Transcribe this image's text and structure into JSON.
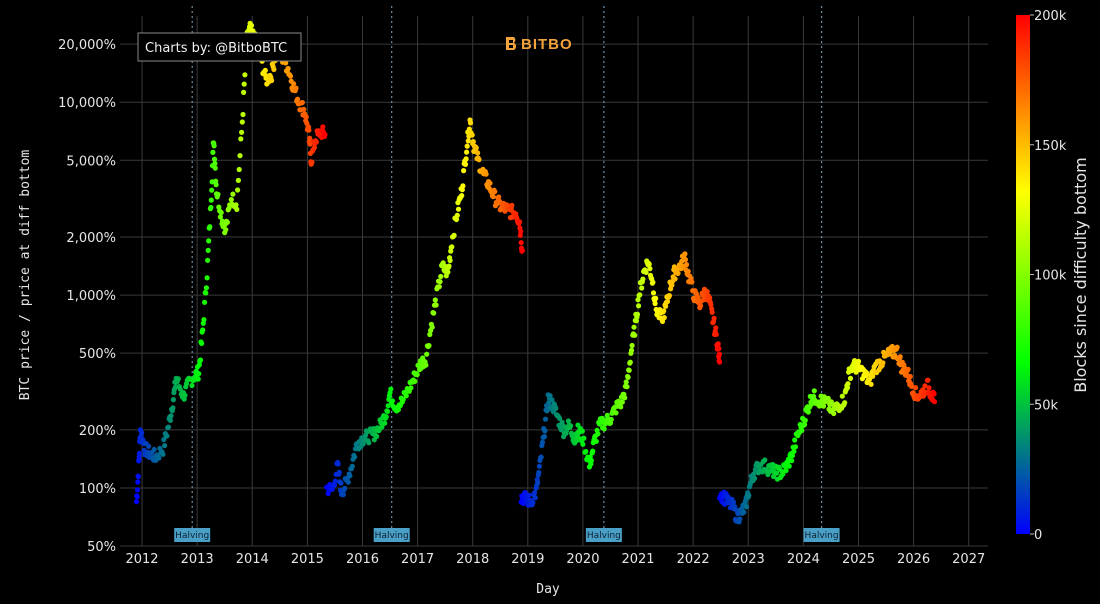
{
  "chart_data": {
    "type": "scatter",
    "title": "",
    "xlabel": "Day",
    "ylabel": "BTC price / price at diff bottom",
    "x_ticks": [
      "2012",
      "2013",
      "2014",
      "2015",
      "2016",
      "2017",
      "2018",
      "2019",
      "2020",
      "2021",
      "2022",
      "2023",
      "2024",
      "2025",
      "2026",
      "2027"
    ],
    "xlim": [
      2011.6,
      2027.35
    ],
    "y_scale": "log",
    "y_ticks": [
      {
        "value": 50,
        "label": "50%"
      },
      {
        "value": 100,
        "label": "100%"
      },
      {
        "value": 200,
        "label": "200%"
      },
      {
        "value": 500,
        "label": "500%"
      },
      {
        "value": 1000,
        "label": "1,000%"
      },
      {
        "value": 2000,
        "label": "2,000%"
      },
      {
        "value": 5000,
        "label": "5,000%"
      },
      {
        "value": 10000,
        "label": "10,000%"
      },
      {
        "value": 20000,
        "label": "20,000%"
      }
    ],
    "ylim": [
      50,
      28000
    ],
    "grid": true,
    "halving_label": "Halving",
    "halvings": [
      2012.91,
      2016.53,
      2020.38,
      2024.33
    ],
    "colorbar": {
      "title": "Blocks since difficulty bottom",
      "min": 0,
      "max": 200000,
      "ticks": [
        {
          "value": 0,
          "label": "0"
        },
        {
          "value": 50000,
          "label": "50k"
        },
        {
          "value": 100000,
          "label": "100k"
        },
        {
          "value": 150000,
          "label": "150k"
        },
        {
          "value": 200000,
          "label": "200k"
        }
      ],
      "colors": [
        "#0000ff",
        "#00ff00",
        "#ffff00",
        "#ff0000"
      ]
    },
    "series": [
      {
        "points": [
          [
            2011.9,
            85
          ],
          [
            2011.94,
            130
          ],
          [
            2011.97,
            200
          ],
          [
            2012.05,
            160
          ],
          [
            2012.15,
            150
          ],
          [
            2012.25,
            145
          ],
          [
            2012.38,
            160
          ],
          [
            2012.48,
            210
          ],
          [
            2012.56,
            280
          ],
          [
            2012.62,
            370
          ],
          [
            2012.75,
            300
          ],
          [
            2012.85,
            350
          ],
          [
            2012.95,
            380
          ],
          [
            2013.03,
            400
          ],
          [
            2013.1,
            650
          ],
          [
            2013.18,
            1300
          ],
          [
            2013.25,
            3000
          ],
          [
            2013.3,
            6500
          ],
          [
            2013.35,
            3500
          ],
          [
            2013.45,
            2500
          ],
          [
            2013.52,
            2200
          ],
          [
            2013.62,
            3200
          ],
          [
            2013.72,
            3000
          ],
          [
            2013.82,
            8000
          ],
          [
            2013.9,
            21000
          ],
          [
            2013.96,
            24000
          ],
          [
            2014.05,
            21000
          ],
          [
            2014.15,
            17000
          ],
          [
            2014.25,
            13000
          ],
          [
            2014.35,
            14000
          ],
          [
            2014.45,
            19000
          ],
          [
            2014.55,
            17000
          ],
          [
            2014.65,
            15000
          ],
          [
            2014.75,
            12000
          ],
          [
            2014.85,
            10000
          ],
          [
            2014.95,
            9000
          ],
          [
            2015.02,
            7000
          ],
          [
            2015.07,
            5000
          ],
          [
            2015.15,
            6500
          ],
          [
            2015.25,
            7000
          ],
          [
            2015.32,
            6800
          ]
        ]
      },
      {
        "points": [
          [
            2015.35,
            100
          ],
          [
            2015.45,
            98
          ],
          [
            2015.55,
            130
          ],
          [
            2015.62,
            95
          ],
          [
            2015.7,
            105
          ],
          [
            2015.8,
            130
          ],
          [
            2015.9,
            170
          ],
          [
            2016.0,
            180
          ],
          [
            2016.1,
            185
          ],
          [
            2016.2,
            190
          ],
          [
            2016.3,
            205
          ],
          [
            2016.42,
            240
          ],
          [
            2016.5,
            310
          ],
          [
            2016.6,
            265
          ],
          [
            2016.72,
            280
          ],
          [
            2016.85,
            330
          ],
          [
            2016.95,
            380
          ],
          [
            2017.05,
            440
          ],
          [
            2017.15,
            470
          ],
          [
            2017.25,
            700
          ],
          [
            2017.35,
            1000
          ],
          [
            2017.45,
            1400
          ],
          [
            2017.55,
            1300
          ],
          [
            2017.62,
            1900
          ],
          [
            2017.72,
            2700
          ],
          [
            2017.8,
            3500
          ],
          [
            2017.88,
            5500
          ],
          [
            2017.95,
            8000
          ],
          [
            2018.02,
            6000
          ],
          [
            2018.1,
            5000
          ],
          [
            2018.2,
            4200
          ],
          [
            2018.3,
            3700
          ],
          [
            2018.4,
            3200
          ],
          [
            2018.5,
            2900
          ],
          [
            2018.6,
            2800
          ],
          [
            2018.7,
            2700
          ],
          [
            2018.78,
            2700
          ],
          [
            2018.85,
            2400
          ],
          [
            2018.9,
            1700
          ]
        ]
      },
      {
        "points": [
          [
            2018.88,
            90
          ],
          [
            2018.95,
            88
          ],
          [
            2019.05,
            85
          ],
          [
            2019.15,
            95
          ],
          [
            2019.22,
            130
          ],
          [
            2019.3,
            200
          ],
          [
            2019.37,
            290
          ],
          [
            2019.45,
            270
          ],
          [
            2019.55,
            230
          ],
          [
            2019.65,
            200
          ],
          [
            2019.75,
            210
          ],
          [
            2019.85,
            180
          ],
          [
            2019.92,
            200
          ],
          [
            2020.0,
            180
          ],
          [
            2020.12,
            130
          ],
          [
            2020.2,
            170
          ],
          [
            2020.3,
            210
          ],
          [
            2020.4,
            220
          ],
          [
            2020.5,
            230
          ],
          [
            2020.6,
            260
          ],
          [
            2020.7,
            280
          ],
          [
            2020.8,
            340
          ],
          [
            2020.87,
            500
          ],
          [
            2020.95,
            700
          ],
          [
            2021.02,
            1000
          ],
          [
            2021.1,
            1300
          ],
          [
            2021.18,
            1500
          ],
          [
            2021.26,
            1200
          ],
          [
            2021.33,
            850
          ],
          [
            2021.42,
            750
          ],
          [
            2021.5,
            850
          ],
          [
            2021.58,
            1100
          ],
          [
            2021.66,
            1300
          ],
          [
            2021.75,
            1400
          ],
          [
            2021.85,
            1550
          ],
          [
            2021.92,
            1250
          ],
          [
            2022.02,
            1000
          ],
          [
            2022.12,
            900
          ],
          [
            2022.22,
            1050
          ],
          [
            2022.3,
            900
          ],
          [
            2022.38,
            700
          ],
          [
            2022.45,
            550
          ],
          [
            2022.48,
            450
          ]
        ]
      },
      {
        "points": [
          [
            2022.48,
            95
          ],
          [
            2022.55,
            90
          ],
          [
            2022.62,
            85
          ],
          [
            2022.72,
            80
          ],
          [
            2022.8,
            70
          ],
          [
            2022.88,
            75
          ],
          [
            2022.95,
            80
          ],
          [
            2023.02,
            100
          ],
          [
            2023.1,
            120
          ],
          [
            2023.2,
            130
          ],
          [
            2023.3,
            130
          ],
          [
            2023.4,
            125
          ],
          [
            2023.5,
            120
          ],
          [
            2023.6,
            120
          ],
          [
            2023.7,
            130
          ],
          [
            2023.8,
            150
          ],
          [
            2023.9,
            190
          ],
          [
            2024.0,
            220
          ],
          [
            2024.08,
            260
          ],
          [
            2024.16,
            300
          ],
          [
            2024.25,
            290
          ],
          [
            2024.35,
            280
          ],
          [
            2024.45,
            270
          ],
          [
            2024.55,
            250
          ],
          [
            2024.65,
            270
          ],
          [
            2024.75,
            290
          ],
          [
            2024.82,
            380
          ],
          [
            2024.9,
            430
          ],
          [
            2025.0,
            420
          ],
          [
            2025.1,
            390
          ],
          [
            2025.2,
            350
          ],
          [
            2025.3,
            420
          ],
          [
            2025.4,
            450
          ],
          [
            2025.5,
            480
          ],
          [
            2025.6,
            500
          ],
          [
            2025.7,
            510
          ],
          [
            2025.78,
            430
          ],
          [
            2025.88,
            400
          ],
          [
            2025.95,
            350
          ],
          [
            2026.05,
            300
          ],
          [
            2026.15,
            310
          ],
          [
            2026.25,
            340
          ],
          [
            2026.32,
            310
          ],
          [
            2026.38,
            280
          ]
        ]
      }
    ]
  },
  "credit": "Charts by: @BitboBTC",
  "logo": {
    "text": "BITBO",
    "color": "#f2a33c"
  }
}
